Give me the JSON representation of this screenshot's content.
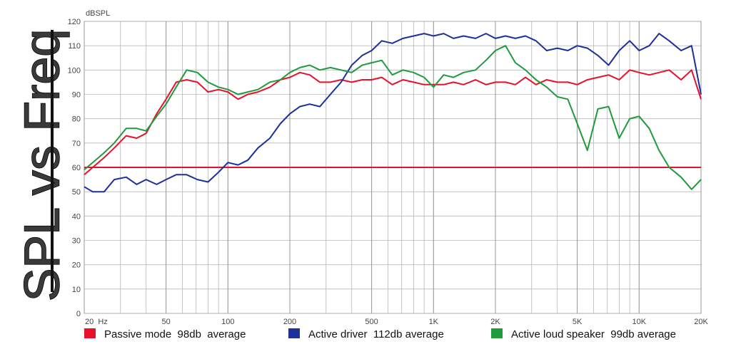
{
  "chart_data": {
    "type": "line",
    "title": "SPL vs Freq",
    "y_label": "dBSPL",
    "log_x": true,
    "grid": true,
    "xlim": [
      20,
      20000
    ],
    "ylim": [
      0,
      120
    ],
    "xticks": [
      {
        "value": 20,
        "label": "20  Hz"
      },
      50,
      100,
      200,
      500,
      {
        "value": 1000,
        "label": "1K"
      },
      {
        "value": 2000,
        "label": "2K"
      },
      {
        "value": 5000,
        "label": "5K"
      },
      {
        "value": 10000,
        "label": "10K"
      },
      {
        "value": 20000,
        "label": "20K"
      }
    ],
    "yticks": [
      0,
      10,
      20,
      30,
      40,
      50,
      60,
      70,
      80,
      90,
      100,
      110,
      120
    ],
    "reference_line": {
      "value": 60,
      "color": "#e8102a"
    },
    "x": [
      20,
      22,
      25,
      28,
      32,
      36,
      40,
      45,
      50,
      56,
      63,
      71,
      80,
      90,
      100,
      112,
      125,
      140,
      160,
      180,
      200,
      224,
      250,
      280,
      315,
      355,
      400,
      450,
      500,
      560,
      630,
      710,
      800,
      900,
      1000,
      1120,
      1250,
      1400,
      1600,
      1800,
      2000,
      2240,
      2500,
      2800,
      3150,
      3550,
      4000,
      4500,
      5000,
      5600,
      6300,
      7100,
      8000,
      9000,
      10000,
      11200,
      12500,
      14000,
      16000,
      18000,
      20000
    ],
    "series": [
      {
        "name": "Passive mode  98db  average",
        "color": "#e8102a",
        "values": [
          57,
          60,
          64,
          68,
          73,
          72,
          74,
          82,
          88,
          95,
          96,
          95,
          91,
          92,
          91,
          88,
          90,
          91,
          93,
          96,
          97,
          99,
          98,
          95,
          95,
          96,
          95,
          96,
          96,
          97,
          94,
          96,
          95,
          94,
          94,
          94,
          95,
          94,
          96,
          94,
          95,
          95,
          94,
          97,
          94,
          96,
          95,
          95,
          94,
          96,
          97,
          98,
          96,
          100,
          99,
          98,
          99,
          100,
          96,
          100,
          88
        ]
      },
      {
        "name": "Active driver  112db average",
        "color": "#1c2f9a",
        "values": [
          52,
          50,
          50,
          55,
          56,
          53,
          55,
          53,
          55,
          57,
          57,
          55,
          54,
          58,
          62,
          61,
          63,
          68,
          72,
          78,
          82,
          85,
          86,
          85,
          90,
          95,
          102,
          106,
          108,
          112,
          111,
          113,
          114,
          115,
          114,
          115,
          113,
          114,
          113,
          115,
          113,
          114,
          113,
          114,
          112,
          108,
          109,
          108,
          110,
          109,
          106,
          102,
          108,
          112,
          108,
          110,
          115,
          112,
          108,
          110,
          90
        ]
      },
      {
        "name": "Active loud speaker  99db average",
        "color": "#1f9a3c",
        "values": [
          59,
          62,
          66,
          70,
          76,
          76,
          75,
          81,
          86,
          93,
          100,
          99,
          95,
          93,
          92,
          90,
          91,
          92,
          95,
          96,
          99,
          101,
          102,
          100,
          101,
          100,
          99,
          102,
          103,
          104,
          98,
          100,
          99,
          97,
          93,
          98,
          97,
          99,
          100,
          104,
          108,
          110,
          103,
          100,
          96,
          93,
          89,
          88,
          78,
          67,
          84,
          85,
          72,
          80,
          81,
          76,
          67,
          60,
          56,
          51,
          55
        ]
      }
    ]
  }
}
